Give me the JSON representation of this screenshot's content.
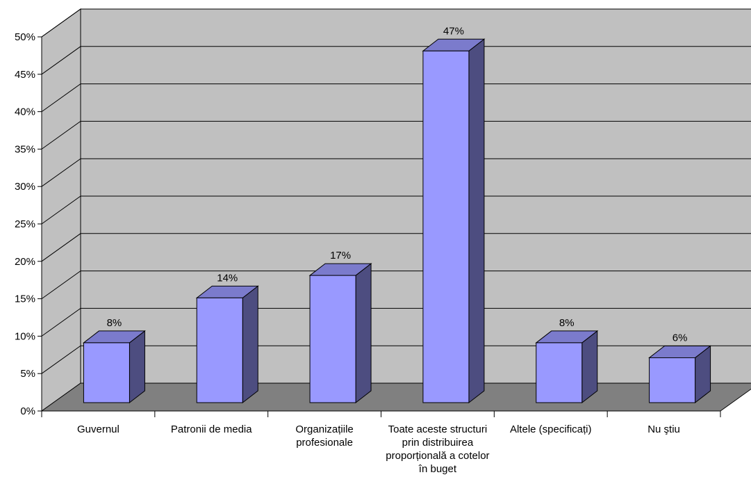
{
  "chart_data": {
    "type": "bar",
    "categories": [
      "Guvernul",
      "Patronii de media",
      "Organizațiile profesionale",
      "Toate aceste structuri prin distribuirea proporțională a cotelor în buget",
      "Altele (specificați)",
      "Nu ştiu"
    ],
    "values": [
      8,
      14,
      17,
      47,
      8,
      6
    ],
    "data_labels": [
      "8%",
      "14%",
      "17%",
      "47%",
      "8%",
      "6%"
    ],
    "ylim": [
      0,
      50
    ],
    "yticks": [
      "0%",
      "5%",
      "10%",
      "15%",
      "20%",
      "25%",
      "30%",
      "35%",
      "40%",
      "45%",
      "50%"
    ],
    "title": "",
    "xlabel": "",
    "ylabel": "",
    "grid": true,
    "legend": "none",
    "style": "3d-column",
    "colors": {
      "bar_front": "#9999FF",
      "bar_side": "#4D4D80",
      "bar_top": "#7B7BCC",
      "wall": "#C0C0C0",
      "floor": "#808080",
      "gridline": "#000000"
    }
  }
}
